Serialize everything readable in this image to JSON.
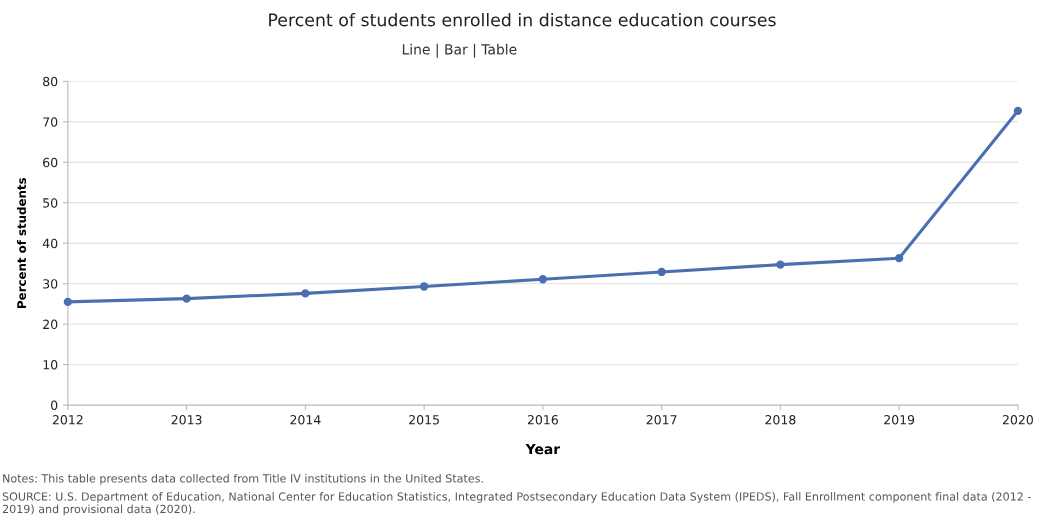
{
  "chart_data": {
    "type": "line",
    "title": "Percent of students enrolled in distance education courses",
    "xlabel": "Year",
    "ylabel": "Percent of students",
    "x": [
      2012,
      2013,
      2014,
      2015,
      2016,
      2017,
      2018,
      2019,
      2020
    ],
    "series": [
      {
        "color": "#4a6fb0",
        "values": [
          25.5,
          26.3,
          27.6,
          29.3,
          31.1,
          32.9,
          34.7,
          36.3,
          72.7
        ]
      }
    ],
    "xlim": [
      2012,
      2020
    ],
    "xticks": [
      2012,
      2013,
      2014,
      2015,
      2016,
      2017,
      2018,
      2019,
      2020
    ],
    "ylim": [
      0,
      80
    ],
    "yticks": [
      0,
      10,
      20,
      30,
      40,
      50,
      60,
      70,
      80
    ],
    "grid": "y",
    "marker": "circle",
    "line_style": "solid",
    "legend": false,
    "annotations": [
      "Line | Bar | Table",
      "Notes: This table presents data collected from Title IV institutions in the United States.",
      "SOURCE: U.S. Department of Education, National Center for Education Statistics, Integrated Postsecondary Education Data System (IPEDS), Fall Enrollment component final data (2012 - 2019) and provisional data (2020)."
    ]
  }
}
